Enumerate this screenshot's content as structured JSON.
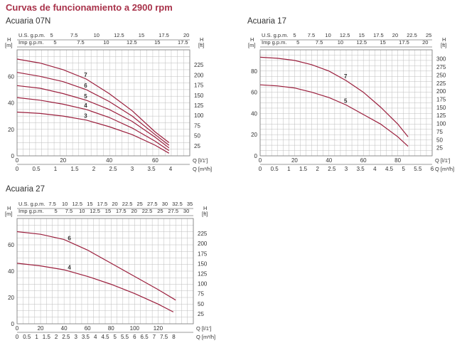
{
  "page_title": "Curvas de funcionamiento a 2900 rpm",
  "colors": {
    "curve": "#9b1f3d",
    "title": "#a8324a",
    "grid": "#bdbdbd",
    "axis": "#7a7a7a"
  },
  "chart_data": [
    {
      "type": "line",
      "title": "Acuaria 07N",
      "y_left_label": "H\n[m]",
      "y_left_range": [
        0,
        80
      ],
      "y_left_ticks": [
        0,
        20,
        40,
        60
      ],
      "y_right_label": "H\n[ft]",
      "y_right_ticks": [
        25,
        50,
        75,
        100,
        125,
        150,
        175,
        200,
        225
      ],
      "x_label": "Q [l/1']",
      "x_range": [
        0,
        75
      ],
      "x_ticks": [
        0,
        20,
        40,
        60
      ],
      "x2_label": "Q [m³/h]",
      "x2_ticks": [
        "0",
        "0.5",
        "1",
        "1.5",
        "2",
        "2.5",
        "3",
        "3.5",
        "4"
      ],
      "top1_label": "U.S. g.p.m.",
      "top1_ticks": [
        "5",
        "7.5",
        "10",
        "12.5",
        "15",
        "17.5",
        "20"
      ],
      "top2_label": "Imp g.p.m.",
      "top2_ticks": [
        "5",
        "7.5",
        "10",
        "12.5",
        "15",
        "17.5"
      ],
      "series": [
        {
          "name": "7",
          "x": [
            0,
            10,
            20,
            30,
            40,
            50,
            60,
            66
          ],
          "y": [
            73,
            70,
            65,
            58,
            47,
            34,
            18,
            10
          ]
        },
        {
          "name": "6",
          "x": [
            0,
            10,
            20,
            30,
            40,
            50,
            60,
            66
          ],
          "y": [
            63,
            60,
            56,
            50,
            41,
            30,
            16,
            8
          ]
        },
        {
          "name": "5",
          "x": [
            0,
            10,
            20,
            30,
            40,
            50,
            60,
            66
          ],
          "y": [
            53,
            51,
            47,
            42,
            35,
            26,
            14,
            6
          ]
        },
        {
          "name": "4",
          "x": [
            0,
            10,
            20,
            30,
            40,
            50,
            60,
            66
          ],
          "y": [
            44,
            42,
            39,
            35,
            29,
            21,
            11,
            4
          ]
        },
        {
          "name": "3",
          "x": [
            0,
            10,
            20,
            30,
            40,
            50,
            60,
            66
          ],
          "y": [
            33,
            32,
            30,
            27,
            22,
            16,
            8,
            2
          ]
        }
      ]
    },
    {
      "type": "line",
      "title": "Acuaria 17",
      "y_left_label": "H\n[m]",
      "y_left_range": [
        0,
        100
      ],
      "y_left_ticks": [
        0,
        20,
        40,
        60,
        80
      ],
      "y_right_label": "H\n[ft]",
      "y_right_ticks": [
        25,
        50,
        75,
        100,
        125,
        150,
        175,
        200,
        225,
        250,
        275,
        300
      ],
      "x_label": "Q [l/1']",
      "x_range": [
        0,
        100
      ],
      "x_ticks": [
        0,
        20,
        40,
        60,
        80
      ],
      "x2_label": "Q [m³/h]",
      "x2_ticks": [
        "0",
        "0.5",
        "1",
        "1.5",
        "2",
        "2.5",
        "3",
        "3.5",
        "4",
        "4.5",
        "5",
        "5.5",
        "6"
      ],
      "top1_label": "U.S. g.p.m.",
      "top1_ticks": [
        "5",
        "7.5",
        "10",
        "12.5",
        "15",
        "17.5",
        "20",
        "22.5",
        "25"
      ],
      "top2_label": "Imp g.p.m.",
      "top2_ticks": [
        "5",
        "7.5",
        "10",
        "12.5",
        "15",
        "17.5",
        "20"
      ],
      "series": [
        {
          "name": "7",
          "x": [
            0,
            10,
            20,
            30,
            40,
            50,
            60,
            70,
            80,
            86
          ],
          "y": [
            93,
            92,
            90,
            86,
            80,
            71,
            60,
            46,
            30,
            18
          ]
        },
        {
          "name": "5",
          "x": [
            0,
            10,
            20,
            30,
            40,
            50,
            60,
            70,
            80,
            86
          ],
          "y": [
            67,
            66,
            64,
            60,
            55,
            48,
            39,
            30,
            18,
            9
          ]
        }
      ]
    },
    {
      "type": "line",
      "title": "Acuaria 27",
      "y_left_label": "H\n[m]",
      "y_left_range": [
        0,
        80
      ],
      "y_left_ticks": [
        0,
        20,
        40,
        60
      ],
      "y_right_label": "H\n[ft]",
      "y_right_ticks": [
        25,
        50,
        75,
        100,
        125,
        150,
        175,
        200,
        225
      ],
      "x_label": "Q [l/1']",
      "x_range": [
        0,
        150
      ],
      "x_ticks": [
        0,
        20,
        40,
        60,
        80,
        100,
        120
      ],
      "x2_label": "Q [m³/h]",
      "x2_ticks": [
        "0",
        "0.5",
        "1",
        "1.5",
        "2",
        "2.5",
        "3",
        "3.5",
        "4",
        "4.5",
        "5",
        "5.5",
        "6",
        "6.5",
        "7",
        "7.5",
        "8"
      ],
      "top1_label": "U.S. g.p.m.",
      "top1_ticks": [
        "7.5",
        "10",
        "12.5",
        "15",
        "17.5",
        "20",
        "22.5",
        "25",
        "27.5",
        "30",
        "32.5",
        "35"
      ],
      "top2_label": "Imp g.p.m.",
      "top2_ticks": [
        "5",
        "7.5",
        "10",
        "12.5",
        "15",
        "17.5",
        "20",
        "22.5",
        "25",
        "27.5",
        "30"
      ],
      "series": [
        {
          "name": "6",
          "x": [
            0,
            20,
            40,
            60,
            80,
            100,
            120,
            135
          ],
          "y": [
            70,
            68,
            64,
            56,
            46,
            36,
            26,
            18
          ]
        },
        {
          "name": "4",
          "x": [
            0,
            20,
            40,
            60,
            80,
            100,
            120,
            133
          ],
          "y": [
            46,
            44,
            41,
            36,
            30,
            23,
            15,
            9
          ]
        }
      ]
    }
  ]
}
